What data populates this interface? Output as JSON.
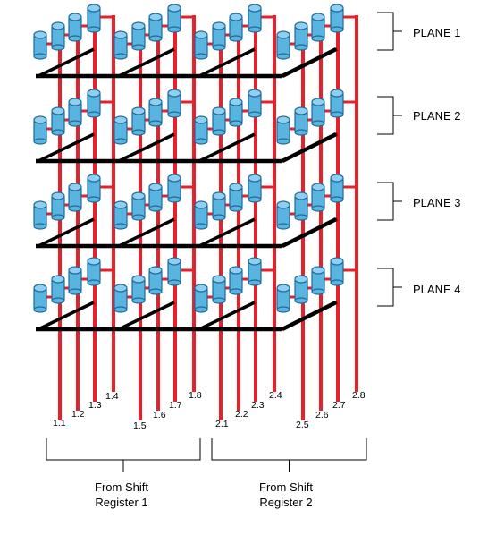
{
  "planes": [
    {
      "label": "PLANE 1"
    },
    {
      "label": "PLANE 2"
    },
    {
      "label": "PLANE 3"
    },
    {
      "label": "PLANE 4"
    }
  ],
  "pins": [
    "1.1",
    "1.2",
    "1.3",
    "1.4",
    "1.5",
    "1.6",
    "1.7",
    "1.8",
    "2.1",
    "2.2",
    "2.3",
    "2.4",
    "2.5",
    "2.6",
    "2.7",
    "2.8"
  ],
  "registers": [
    {
      "line1": "From Shift",
      "line2": "Register 1"
    },
    {
      "line1": "From Shift",
      "line2": "Register 2"
    }
  ],
  "colors": {
    "wire": "#e8202a",
    "ground_bus": "#000000",
    "led_fill": "#5ab4e0",
    "led_stroke": "#1d6a9a",
    "bracket": "#000000"
  }
}
